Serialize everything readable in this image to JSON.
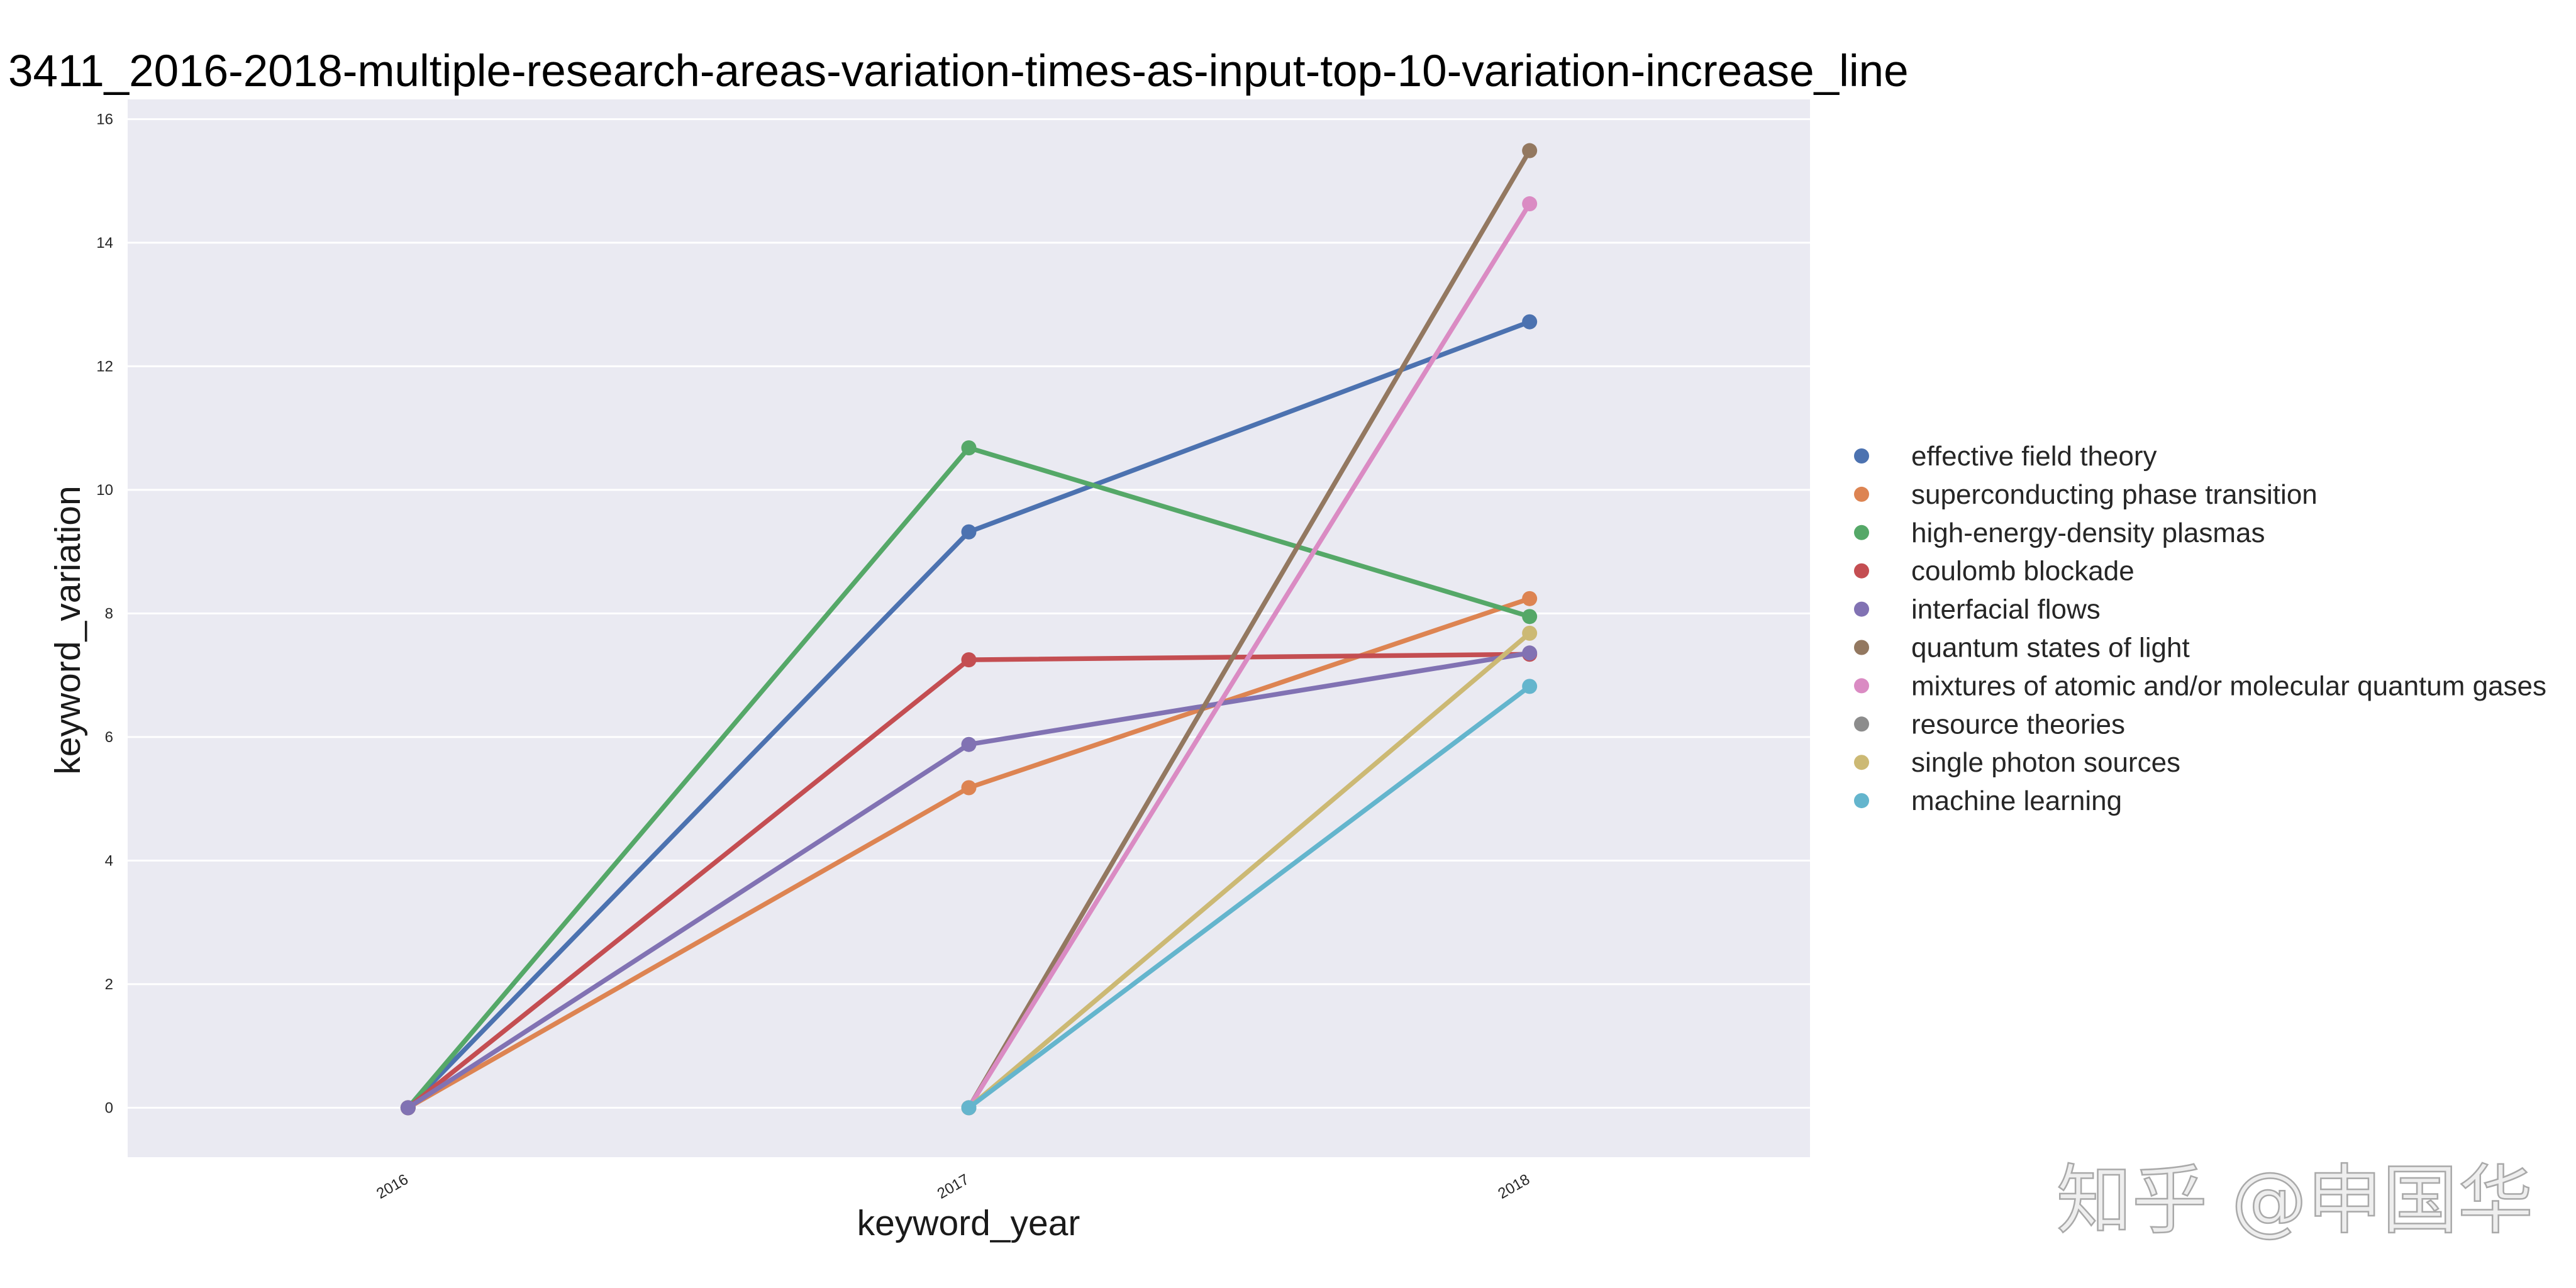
{
  "chart_data": {
    "type": "line",
    "title": "3411_2016-2018-multiple-research-areas-variation-times-as-input-top-10-variation-increase_line",
    "xlabel": "keyword_year",
    "ylabel": "keyword_variation",
    "categories": [
      "2016",
      "2017",
      "2018"
    ],
    "xlim": [
      -0.5,
      2.5
    ],
    "ylim": [
      -0.8,
      16.32
    ],
    "yticks": [
      0,
      2,
      4,
      6,
      8,
      10,
      12,
      14,
      16
    ],
    "grid": true,
    "legend_position": "right",
    "series": [
      {
        "name": "effective field theory",
        "color": "#4c72b0",
        "values": [
          0,
          9.32,
          12.72
        ]
      },
      {
        "name": "superconducting phase transition",
        "color": "#dd8452",
        "values": [
          0,
          5.18,
          8.24
        ]
      },
      {
        "name": "high-energy-density plasmas",
        "color": "#55a868",
        "values": [
          0,
          10.68,
          7.95
        ]
      },
      {
        "name": "coulomb blockade",
        "color": "#c44e52",
        "values": [
          0,
          7.25,
          7.34
        ]
      },
      {
        "name": "interfacial flows",
        "color": "#8172b3",
        "values": [
          0,
          5.88,
          7.36
        ]
      },
      {
        "name": "quantum states of light",
        "color": "#937860",
        "values": [
          null,
          0,
          15.49
        ]
      },
      {
        "name": "mixtures of atomic and/or molecular quantum gases",
        "color": "#da8bc3",
        "values": [
          null,
          0,
          14.63
        ]
      },
      {
        "name": "resource theories",
        "color": "#8c8c8c",
        "values": [
          null,
          null,
          null
        ]
      },
      {
        "name": "single photon sources",
        "color": "#ccb974",
        "values": [
          null,
          0,
          7.68
        ]
      },
      {
        "name": "machine learning",
        "color": "#64b5cd",
        "values": [
          null,
          0,
          6.82
        ]
      }
    ]
  },
  "watermark": "知乎 @申国华"
}
